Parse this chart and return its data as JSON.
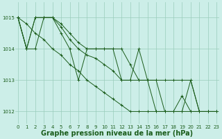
{
  "background_color": "#cceee8",
  "plot_bg_color": "#cceee8",
  "grid_color": "#99ccbb",
  "line_color": "#1a5c1a",
  "marker_color": "#1a5c1a",
  "xlabel": "Graphe pression niveau de la mer (hPa)",
  "xlabel_fontsize": 7,
  "xlabel_color": "#1a5c1a",
  "ylim": [
    1011.6,
    1015.5
  ],
  "xlim": [
    -0.3,
    23.3
  ],
  "yticks": [
    1012,
    1013,
    1014,
    1015
  ],
  "xticks": [
    0,
    1,
    2,
    3,
    4,
    5,
    6,
    7,
    8,
    9,
    10,
    11,
    12,
    13,
    14,
    15,
    16,
    17,
    18,
    19,
    20,
    21,
    22,
    23
  ],
  "tick_fontsize": 5.0,
  "tick_color": "#1a5c1a",
  "series": [
    [
      1015.0,
      1014.0,
      1014.0,
      1015.0,
      1015.0,
      1014.5,
      1014.0,
      1013.0,
      1014.0,
      1014.0,
      1014.0,
      1014.0,
      1013.0,
      1013.0,
      1014.0,
      1013.0,
      1013.0,
      1012.0,
      1012.0,
      1012.0,
      1013.0,
      1012.0,
      1012.0,
      1012.0
    ],
    [
      1015.0,
      1014.0,
      1015.0,
      1015.0,
      1015.0,
      1014.8,
      1014.5,
      1014.2,
      1014.0,
      1014.0,
      1014.0,
      1014.0,
      1014.0,
      1013.5,
      1013.0,
      1013.0,
      1012.0,
      1012.0,
      1012.0,
      1012.5,
      1012.0,
      1012.0,
      1012.0,
      1012.0
    ],
    [
      1015.0,
      1014.0,
      1015.0,
      1015.0,
      1015.0,
      1014.7,
      1014.3,
      1014.0,
      1013.8,
      1013.7,
      1013.5,
      1013.3,
      1013.0,
      1013.0,
      1013.0,
      1013.0,
      1013.0,
      1013.0,
      1013.0,
      1013.0,
      1013.0,
      1012.0,
      1012.0,
      1012.0
    ],
    [
      1015.0,
      1014.8,
      1014.5,
      1014.3,
      1014.0,
      1013.8,
      1013.5,
      1013.3,
      1013.0,
      1012.8,
      1012.6,
      1012.4,
      1012.2,
      1012.0,
      1012.0,
      1012.0,
      1012.0,
      1012.0,
      1012.0,
      1012.0,
      1012.0,
      1012.0,
      1012.0,
      1012.0
    ]
  ]
}
